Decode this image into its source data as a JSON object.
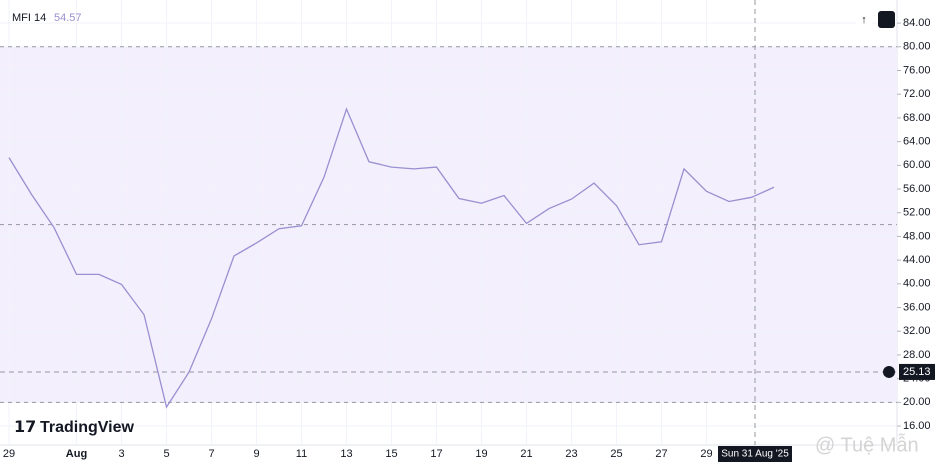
{
  "chart_data": {
    "type": "line",
    "series": [
      {
        "name": "MFI 14",
        "color": "#9a8fd0",
        "values": [
          61.3,
          55.1,
          49.5,
          41.6,
          41.6,
          39.9,
          34.8,
          19.2,
          25.1,
          34.1,
          44.7,
          46.9,
          49.3,
          49.8,
          58.0,
          69.5,
          60.6,
          59.7,
          59.4,
          59.7,
          54.4,
          53.6,
          54.9,
          50.2,
          52.7,
          54.3,
          57.0,
          53.2,
          46.6,
          47.1,
          59.4,
          55.6,
          53.9,
          54.6,
          56.3
        ]
      }
    ],
    "legend_value": 54.57,
    "categories": [
      "29",
      null,
      null,
      "Aug",
      null,
      "3",
      null,
      "5",
      null,
      "7",
      null,
      "9",
      null,
      "11",
      null,
      "13",
      null,
      "15",
      null,
      "17",
      null,
      "19",
      null,
      "21",
      null,
      "23",
      null,
      "25",
      null,
      "27",
      null,
      "29",
      null,
      null,
      null
    ],
    "ylim": [
      12.8,
      87.9
    ],
    "yticks": [
      {
        "value": 16,
        "label": "16.00"
      },
      {
        "value": 20,
        "label": "20.00"
      },
      {
        "value": 24,
        "label": "24.00"
      },
      {
        "value": 28,
        "label": "28.00"
      },
      {
        "value": 32,
        "label": "32.00"
      },
      {
        "value": 36,
        "label": "36.00"
      },
      {
        "value": 40,
        "label": "40.00"
      },
      {
        "value": 44,
        "label": "44.00"
      },
      {
        "value": 48,
        "label": "48.00"
      },
      {
        "value": 52,
        "label": "52.00"
      },
      {
        "value": 56,
        "label": "56.00"
      },
      {
        "value": 60,
        "label": "60.00"
      },
      {
        "value": 64,
        "label": "64.00"
      },
      {
        "value": 68,
        "label": "68.00"
      },
      {
        "value": 72,
        "label": "72.00"
      },
      {
        "value": 76,
        "label": "76.00"
      },
      {
        "value": 80,
        "label": "80.00"
      },
      {
        "value": 84,
        "label": "84.00"
      }
    ],
    "bands": {
      "upper": 80,
      "middle": 50,
      "lower": 20,
      "fill": "#f3effd"
    },
    "grid": true,
    "crosshair": {
      "y_value": 25.13,
      "x_label": "Sun 31 Aug '25"
    },
    "watermark": "TradingView",
    "credit": "@ Tuệ Mẫn"
  }
}
